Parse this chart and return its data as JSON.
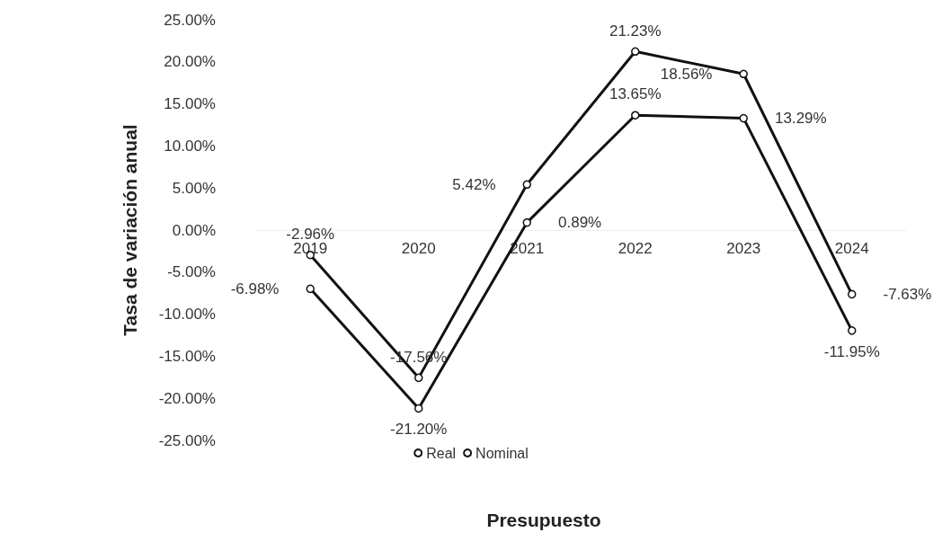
{
  "chart_data": {
    "type": "line",
    "xlabel": "Presupuesto",
    "ylabel": "Tasa de variación anual",
    "categories": [
      "2019",
      "2020",
      "2021",
      "2022",
      "2023",
      "2024"
    ],
    "series": [
      {
        "name": "Real",
        "color": "#111111",
        "values": [
          -6.98,
          -21.2,
          0.89,
          13.65,
          13.29,
          -11.95
        ],
        "value_labels": [
          "-6.98%",
          "-21.20%",
          "0.89%",
          "13.65%",
          "13.29%",
          "-11.95%"
        ]
      },
      {
        "name": "Nominal",
        "color": "#111111",
        "values": [
          -2.96,
          -17.56,
          5.42,
          21.23,
          18.56,
          -7.63
        ],
        "value_labels": [
          "-2.96%",
          "-17.56%",
          "5.42%",
          "21.23%",
          "18.56%",
          "-7.63%"
        ]
      }
    ],
    "ylim": [
      -25,
      25
    ],
    "yticks": [
      {
        "value": -25,
        "label": "-25.00%"
      },
      {
        "value": -20,
        "label": "-20.00%"
      },
      {
        "value": -15,
        "label": "-15.00%"
      },
      {
        "value": -10,
        "label": "-10.00%"
      },
      {
        "value": -5,
        "label": "-5.00%"
      },
      {
        "value": 0,
        "label": "0.00%"
      },
      {
        "value": 5,
        "label": "5.00%"
      },
      {
        "value": 10,
        "label": "10.00%"
      },
      {
        "value": 15,
        "label": "15.00%"
      },
      {
        "value": 20,
        "label": "20.00%"
      },
      {
        "value": 25,
        "label": "25.00%"
      }
    ],
    "grid": false,
    "legend": "bottom",
    "marker": "circle",
    "line_style": "solid"
  }
}
